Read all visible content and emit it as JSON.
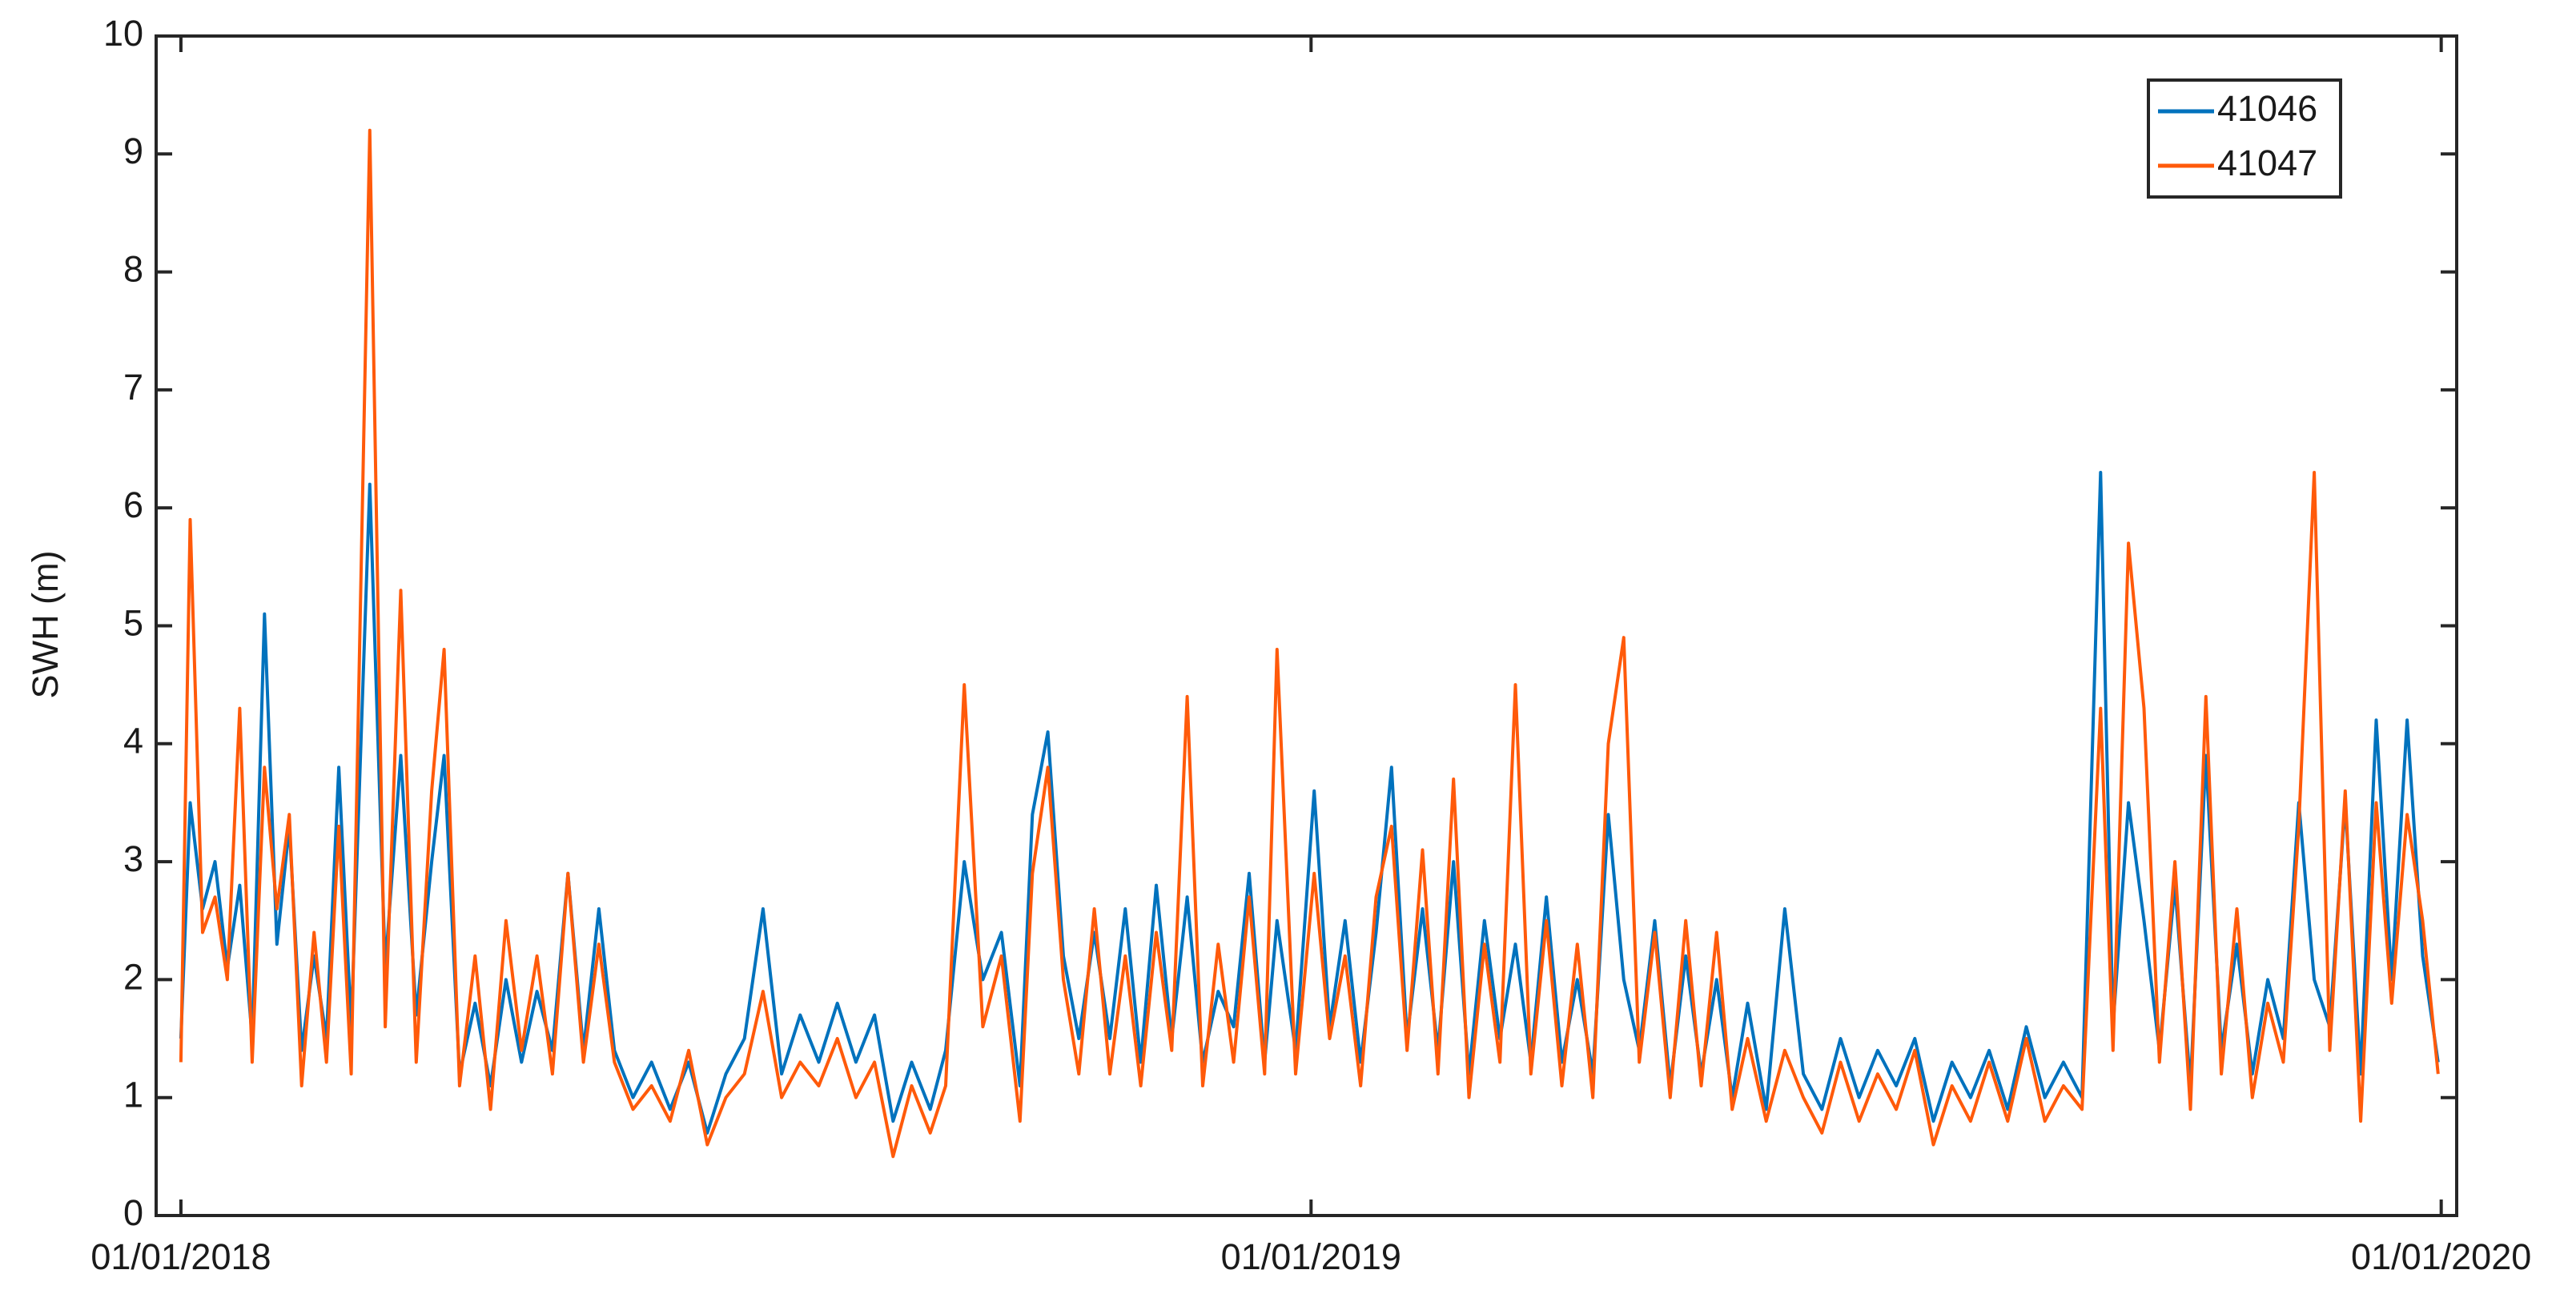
{
  "chart_data": {
    "type": "line",
    "ylabel": "SWH (m)",
    "x": [
      "2018-01-01",
      "2018-01-04",
      "2018-01-08",
      "2018-01-12",
      "2018-01-16",
      "2018-01-20",
      "2018-01-24",
      "2018-01-28",
      "2018-02-01",
      "2018-02-05",
      "2018-02-09",
      "2018-02-13",
      "2018-02-17",
      "2018-02-21",
      "2018-02-25",
      "2018-03-03",
      "2018-03-08",
      "2018-03-13",
      "2018-03-18",
      "2018-03-23",
      "2018-03-27",
      "2018-04-01",
      "2018-04-06",
      "2018-04-11",
      "2018-04-16",
      "2018-04-21",
      "2018-04-26",
      "2018-05-01",
      "2018-05-06",
      "2018-05-11",
      "2018-05-16",
      "2018-05-21",
      "2018-05-27",
      "2018-06-02",
      "2018-06-08",
      "2018-06-14",
      "2018-06-20",
      "2018-06-26",
      "2018-07-02",
      "2018-07-08",
      "2018-07-14",
      "2018-07-20",
      "2018-07-26",
      "2018-08-01",
      "2018-08-07",
      "2018-08-13",
      "2018-08-19",
      "2018-08-25",
      "2018-08-31",
      "2018-09-05",
      "2018-09-11",
      "2018-09-17",
      "2018-09-23",
      "2018-09-29",
      "2018-10-03",
      "2018-10-08",
      "2018-10-13",
      "2018-10-18",
      "2018-10-23",
      "2018-10-28",
      "2018-11-02",
      "2018-11-07",
      "2018-11-12",
      "2018-11-17",
      "2018-11-22",
      "2018-11-27",
      "2018-12-02",
      "2018-12-07",
      "2018-12-12",
      "2018-12-17",
      "2018-12-21",
      "2018-12-27",
      "2019-01-02",
      "2019-01-07",
      "2019-01-12",
      "2019-01-17",
      "2019-01-22",
      "2019-01-27",
      "2019-02-01",
      "2019-02-06",
      "2019-02-11",
      "2019-02-16",
      "2019-02-21",
      "2019-02-26",
      "2019-03-03",
      "2019-03-08",
      "2019-03-13",
      "2019-03-18",
      "2019-03-23",
      "2019-03-28",
      "2019-04-02",
      "2019-04-07",
      "2019-04-12",
      "2019-04-17",
      "2019-04-22",
      "2019-04-27",
      "2019-05-02",
      "2019-05-07",
      "2019-05-12",
      "2019-05-17",
      "2019-05-22",
      "2019-05-28",
      "2019-06-03",
      "2019-06-09",
      "2019-06-15",
      "2019-06-21",
      "2019-06-27",
      "2019-07-03",
      "2019-07-09",
      "2019-07-15",
      "2019-07-21",
      "2019-07-27",
      "2019-08-02",
      "2019-08-08",
      "2019-08-14",
      "2019-08-20",
      "2019-08-26",
      "2019-09-01",
      "2019-09-07",
      "2019-09-13",
      "2019-09-17",
      "2019-09-22",
      "2019-09-27",
      "2019-10-02",
      "2019-10-07",
      "2019-10-12",
      "2019-10-17",
      "2019-10-22",
      "2019-10-27",
      "2019-11-01",
      "2019-11-06",
      "2019-11-11",
      "2019-11-16",
      "2019-11-21",
      "2019-11-26",
      "2019-12-01",
      "2019-12-06",
      "2019-12-11",
      "2019-12-16",
      "2019-12-21",
      "2019-12-26",
      "2019-12-31"
    ],
    "series": [
      {
        "name": "41046",
        "color": "#0072bd",
        "values": [
          1.5,
          3.5,
          2.6,
          3.0,
          2.1,
          2.8,
          1.5,
          5.1,
          2.3,
          3.3,
          1.4,
          2.2,
          1.5,
          3.8,
          1.6,
          6.2,
          2.1,
          3.9,
          1.7,
          3.0,
          3.9,
          1.2,
          1.8,
          1.1,
          2.0,
          1.3,
          1.9,
          1.4,
          2.9,
          1.4,
          2.6,
          1.4,
          1.0,
          1.3,
          0.9,
          1.3,
          0.7,
          1.2,
          1.5,
          2.6,
          1.2,
          1.7,
          1.3,
          1.8,
          1.3,
          1.7,
          0.8,
          1.3,
          0.9,
          1.4,
          3.0,
          2.0,
          2.4,
          1.1,
          3.4,
          4.1,
          2.2,
          1.5,
          2.4,
          1.5,
          2.6,
          1.3,
          2.8,
          1.5,
          2.7,
          1.3,
          1.9,
          1.6,
          2.9,
          1.3,
          2.5,
          1.4,
          3.6,
          1.6,
          2.5,
          1.3,
          2.4,
          3.8,
          1.5,
          2.6,
          1.4,
          3.0,
          1.2,
          2.5,
          1.5,
          2.3,
          1.3,
          2.7,
          1.3,
          2.0,
          1.2,
          3.4,
          2.0,
          1.4,
          2.5,
          1.1,
          2.2,
          1.2,
          2.0,
          1.0,
          1.8,
          0.9,
          2.6,
          1.2,
          0.9,
          1.5,
          1.0,
          1.4,
          1.1,
          1.5,
          0.8,
          1.3,
          1.0,
          1.4,
          0.9,
          1.6,
          1.0,
          1.3,
          1.0,
          6.3,
          1.6,
          3.5,
          2.5,
          1.4,
          2.8,
          1.1,
          3.9,
          1.4,
          2.3,
          1.2,
          2.0,
          1.5,
          3.5,
          2.0,
          1.6,
          3.5,
          1.2,
          4.2,
          2.0,
          4.2,
          2.2,
          1.3
        ]
      },
      {
        "name": "41047",
        "color": "#ff5a0a",
        "values": [
          1.3,
          5.9,
          2.4,
          2.7,
          2.0,
          4.3,
          1.3,
          3.8,
          2.6,
          3.4,
          1.1,
          2.4,
          1.3,
          3.3,
          1.2,
          9.2,
          1.6,
          5.3,
          1.3,
          3.6,
          4.8,
          1.1,
          2.2,
          0.9,
          2.5,
          1.4,
          2.2,
          1.2,
          2.9,
          1.3,
          2.3,
          1.3,
          0.9,
          1.1,
          0.8,
          1.4,
          0.6,
          1.0,
          1.2,
          1.9,
          1.0,
          1.3,
          1.1,
          1.5,
          1.0,
          1.3,
          0.5,
          1.1,
          0.7,
          1.1,
          4.5,
          1.6,
          2.2,
          0.8,
          2.9,
          3.8,
          2.0,
          1.2,
          2.6,
          1.2,
          2.2,
          1.1,
          2.4,
          1.4,
          4.4,
          1.1,
          2.3,
          1.3,
          2.7,
          1.2,
          4.8,
          1.2,
          2.9,
          1.5,
          2.2,
          1.1,
          2.7,
          3.3,
          1.4,
          3.1,
          1.2,
          3.7,
          1.0,
          2.3,
          1.3,
          4.5,
          1.2,
          2.5,
          1.1,
          2.3,
          1.0,
          4.0,
          4.9,
          1.3,
          2.4,
          1.0,
          2.5,
          1.1,
          2.4,
          0.9,
          1.5,
          0.8,
          1.4,
          1.0,
          0.7,
          1.3,
          0.8,
          1.2,
          0.9,
          1.4,
          0.6,
          1.1,
          0.8,
          1.3,
          0.8,
          1.5,
          0.8,
          1.1,
          0.9,
          4.3,
          1.4,
          5.7,
          4.3,
          1.3,
          3.0,
          0.9,
          4.4,
          1.2,
          2.6,
          1.0,
          1.8,
          1.3,
          3.3,
          6.3,
          1.4,
          3.6,
          0.8,
          3.5,
          1.8,
          3.4,
          2.5,
          1.2
        ]
      }
    ],
    "xlim": [
      "2017-12-24",
      "2020-01-06"
    ],
    "xticks": [
      {
        "value": "2018-01-01",
        "label": "01/01/2018"
      },
      {
        "value": "2019-01-01",
        "label": "01/01/2019"
      },
      {
        "value": "2020-01-01",
        "label": "01/01/2020"
      }
    ],
    "ylim": [
      0,
      10
    ],
    "yticks": [
      0,
      1,
      2,
      3,
      4,
      5,
      6,
      7,
      8,
      9,
      10
    ],
    "grid": false,
    "legend": "upper right"
  }
}
